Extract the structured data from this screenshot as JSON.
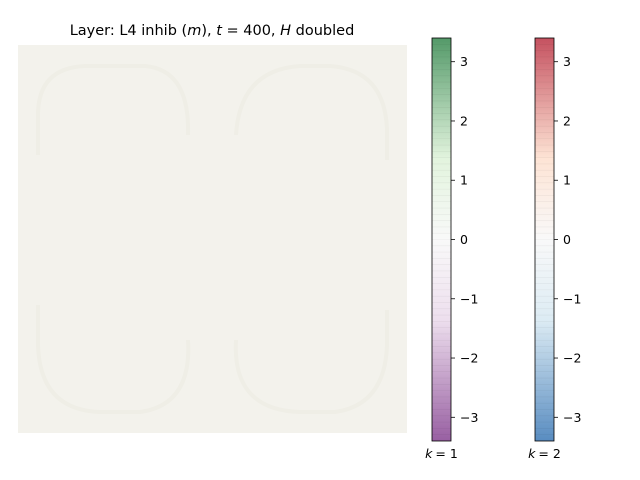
{
  "chart_data": {
    "type": "heatmap",
    "title": "Layer: L4 inhib (m), t = 400, H doubled",
    "title_parts": {
      "prefix": "Layer: L4 inhib (",
      "m_symbol": "m",
      "mid": "), ",
      "t_symbol": "t",
      "t_eq": " = 400, ",
      "h_symbol": "H",
      "suffix": " doubled"
    },
    "image": {
      "background_color": "#f3f2ec",
      "pattern_color": "#efeee6",
      "description_shapes": [
        "rounded-loop-top-left",
        "rounded-loop-top-right",
        "rounded-loop-bottom-left",
        "rounded-loop-bottom-right"
      ],
      "value_range": [
        -0.05,
        0.05
      ]
    },
    "colorbars": [
      {
        "name": "k = 1",
        "label_prefix": "k",
        "label_value": "= 1",
        "colormap": "PRGn",
        "range": [
          -3.4,
          3.4
        ],
        "ticks": [
          3,
          2,
          1,
          0,
          -1,
          -2,
          -3
        ],
        "tick_labels": [
          "3",
          "2",
          "1",
          "0",
          "−1",
          "−2",
          "−3"
        ],
        "colors": {
          "top": "#1b7837",
          "mid_top": "#d9f0d3",
          "center": "#f7f7f7",
          "mid_bottom": "#e7d4e8",
          "bottom": "#762a83"
        }
      },
      {
        "name": "k = 2",
        "label_prefix": "k",
        "label_value": "= 2",
        "colormap": "RdBu_r",
        "range": [
          -3.4,
          3.4
        ],
        "ticks": [
          3,
          2,
          1,
          0,
          -1,
          -2,
          -3
        ],
        "tick_labels": [
          "3",
          "2",
          "1",
          "0",
          "−1",
          "−2",
          "−3"
        ],
        "colors": {
          "top": "#b2182b",
          "mid_top": "#fddbc7",
          "center": "#f7f7f7",
          "mid_bottom": "#d1e5f0",
          "bottom": "#2166ac"
        }
      }
    ]
  }
}
